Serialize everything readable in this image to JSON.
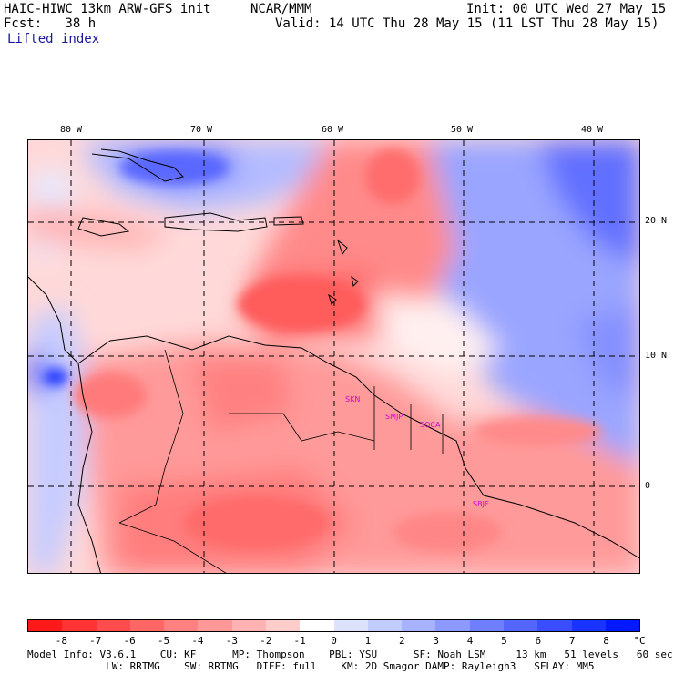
{
  "header": {
    "title": "HAIC-HIWC 13km ARW-GFS init",
    "agency": "NCAR/MMM",
    "init": "Init: 00 UTC Wed 27 May 15",
    "fcst": "Fcst:   38 h",
    "valid": "Valid: 14 UTC Thu 28 May 15 (11 LST Thu 28 May 15)",
    "field": "Lifted index"
  },
  "axes": {
    "lon_labels": [
      "80 W",
      "70 W",
      "60 W",
      "50 W",
      "40 W"
    ],
    "lat_labels": [
      "20 N",
      "10 N",
      "0"
    ]
  },
  "stations": [
    "SKN",
    "SMJP",
    "SOCA",
    "SBJE"
  ],
  "colorbar": {
    "labels": [
      "-8",
      "-7",
      "-6",
      "-5",
      "-4",
      "-3",
      "-2",
      "-1",
      "0",
      "1",
      "2",
      "3",
      "4",
      "5",
      "6",
      "7",
      "8"
    ],
    "unit": "°C",
    "colors": [
      "#ff1a1a",
      "#ff3333",
      "#ff4d4d",
      "#ff6666",
      "#ff8080",
      "#ff9999",
      "#ffb3b3",
      "#ffcccc",
      "#ffffff",
      "#dde2ff",
      "#c3ccff",
      "#a8b3ff",
      "#8c99ff",
      "#707fff",
      "#5566ff",
      "#3a4dff",
      "#1a33ff",
      "#0019ff"
    ]
  },
  "footer": {
    "line1": "Model Info: V3.6.1    CU: KF      MP: Thompson    PBL: YSU      SF: Noah LSM     13 km   51 levels   60 sec",
    "line2": "             LW: RRTMG    SW: RRTMG   DIFF: full    KM: 2D Smagor DAMP: Rayleigh3   SFLAY: MM5"
  }
}
